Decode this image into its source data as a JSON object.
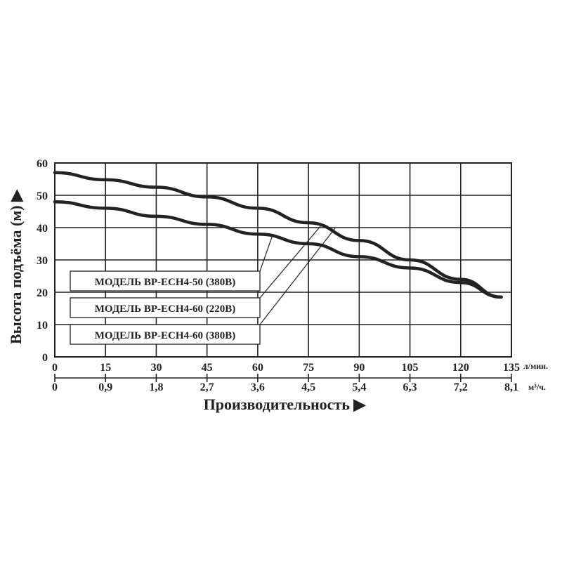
{
  "chart_data": {
    "type": "line",
    "ylabel": "Высота подъёма (м) ▶",
    "xlabel": "Производительность ▶",
    "ylim": [
      0,
      60
    ],
    "xlim": [
      0,
      135
    ],
    "yticks": [
      "0",
      "10",
      "20",
      "30",
      "40",
      "50",
      "60"
    ],
    "xticks_primary": [
      "0",
      "15",
      "30",
      "45",
      "60",
      "75",
      "90",
      "105",
      "120",
      "135"
    ],
    "xticks_secondary": [
      "0",
      "0,9",
      "1,8",
      "2,7",
      "3,6",
      "4,5",
      "5,4",
      "6,3",
      "7,2",
      "8,1"
    ],
    "x_unit_primary": "л/мин.",
    "x_unit_secondary": "м³/ч.",
    "grid": true,
    "series": [
      {
        "name": "МОДЕЛЬ BP-ECH4-50 (380В)",
        "x": [
          0,
          15,
          30,
          45,
          60,
          75,
          90,
          105,
          120,
          132
        ],
        "y": [
          48,
          46,
          43.5,
          41,
          38,
          35,
          31,
          27.5,
          23,
          18.5
        ]
      },
      {
        "name": "МОДЕЛЬ BP-ECH4-60 (220В)",
        "x": [
          0,
          15,
          30,
          45,
          60,
          75,
          90,
          105,
          120,
          132
        ],
        "y": [
          57,
          54.8,
          52.5,
          49.5,
          46,
          41.5,
          36,
          30,
          24,
          18.5
        ]
      },
      {
        "name": "МОДЕЛЬ BP-ECH4-60 (380В)",
        "x": [
          0,
          15,
          30,
          45,
          60,
          75,
          90,
          105,
          120,
          132
        ],
        "y": [
          57,
          54.8,
          52.5,
          49.5,
          46,
          41.5,
          36,
          30,
          24,
          18.5
        ]
      }
    ]
  }
}
